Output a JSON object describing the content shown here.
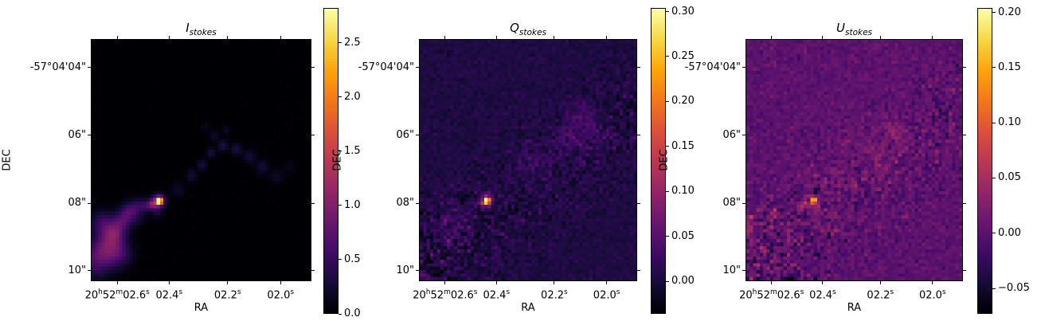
{
  "figure": {
    "background": "#ffffff",
    "description": "Three-panel Stokes I/Q/U intensity maps of a compact source with polarized outflow, inferno colormap, WCS RA/DEC axes"
  },
  "chart_data": {
    "type": "heatmap",
    "colormap": "inferno",
    "colormap_stops": [
      [
        0.0,
        "#000004"
      ],
      [
        0.1,
        "#160b39"
      ],
      [
        0.2,
        "#420a68"
      ],
      [
        0.3,
        "#6a176e"
      ],
      [
        0.4,
        "#932667"
      ],
      [
        0.5,
        "#bc3754"
      ],
      [
        0.6,
        "#dd513a"
      ],
      [
        0.7,
        "#f37819"
      ],
      [
        0.8,
        "#fca50a"
      ],
      [
        0.9,
        "#f6d746"
      ],
      [
        1.0,
        "#fcffa4"
      ]
    ],
    "shared_axes": {
      "xlabel": "RA",
      "ylabel": "DEC",
      "x_tick_labels": [
        "20h52m02.6s",
        "02.4s",
        "02.2s",
        "02.0s"
      ],
      "x_ticks": [
        {
          "frac": 0.12,
          "parts": [
            [
              "20",
              0
            ],
            [
              "h",
              1
            ],
            [
              "52",
              0
            ],
            [
              "m",
              1
            ],
            [
              "02.6",
              0
            ],
            [
              "s",
              1
            ]
          ]
        },
        {
          "frac": 0.355,
          "parts": [
            [
              "02.4",
              0
            ],
            [
              "s",
              1
            ]
          ]
        },
        {
          "frac": 0.62,
          "parts": [
            [
              "02.2",
              0
            ],
            [
              "s",
              1
            ]
          ]
        },
        {
          "frac": 0.86,
          "parts": [
            [
              "02.0",
              0
            ],
            [
              "s",
              1
            ]
          ]
        }
      ],
      "y_ticks": [
        {
          "frac": 0.118,
          "label": "-57°04'04\""
        },
        {
          "frac": 0.398,
          "label": "06\""
        },
        {
          "frac": 0.678,
          "label": "08\""
        },
        {
          "frac": 0.957,
          "label": "10\""
        }
      ]
    },
    "peak_source": {
      "ra_readoff": "≈20h52m02.43s",
      "dec_readoff": "≈-57°04'07.9\"",
      "note": "bright compact source present in all three panels at same sky position"
    },
    "panels": [
      {
        "title_main": "I",
        "title_sub": "stokes",
        "vmin": 0.0,
        "vmax": 2.82,
        "background_level": 0.0,
        "peak_value": 2.82,
        "colorbar_ticks": [
          {
            "label": "0.0",
            "value": 0.0
          },
          {
            "label": "0.5",
            "value": 0.5
          },
          {
            "label": "1.0",
            "value": 1.0
          },
          {
            "label": "1.5",
            "value": 1.5
          },
          {
            "label": "2.0",
            "value": 2.0
          },
          {
            "label": "2.5",
            "value": 2.5
          }
        ],
        "render": {
          "seed": 11,
          "noise": {
            "base": 0.004,
            "band": 0.006,
            "lower_left": 0.012
          },
          "features": [
            [
              0.31,
              0.67,
              2.9,
              0.009
            ],
            [
              0.31,
              0.67,
              1.0,
              0.02
            ],
            [
              0.282,
              0.682,
              0.85,
              0.016
            ],
            [
              0.252,
              0.69,
              0.45,
              0.018
            ],
            [
              0.3,
              0.72,
              0.25,
              0.015
            ],
            [
              0.105,
              0.8,
              0.75,
              0.035
            ],
            [
              0.07,
              0.86,
              0.65,
              0.045
            ],
            [
              0.145,
              0.745,
              0.55,
              0.03
            ],
            [
              0.045,
              0.76,
              0.45,
              0.035
            ],
            [
              0.175,
              0.705,
              0.4,
              0.025
            ],
            [
              0.02,
              0.92,
              0.55,
              0.05
            ],
            [
              0.215,
              0.685,
              0.3,
              0.02
            ],
            [
              0.13,
              0.89,
              0.45,
              0.04
            ],
            [
              0.205,
              0.73,
              0.25,
              0.03
            ],
            [
              0.395,
              0.625,
              0.2,
              0.02
            ],
            [
              0.455,
              0.565,
              0.28,
              0.017
            ],
            [
              0.505,
              0.52,
              0.33,
              0.015
            ],
            [
              0.545,
              0.47,
              0.33,
              0.014
            ],
            [
              0.6,
              0.44,
              0.38,
              0.015
            ],
            [
              0.66,
              0.455,
              0.33,
              0.017
            ],
            [
              0.72,
              0.487,
              0.3,
              0.019
            ],
            [
              0.78,
              0.53,
              0.26,
              0.021
            ],
            [
              0.845,
              0.57,
              0.2,
              0.02
            ],
            [
              0.56,
              0.4,
              0.22,
              0.014
            ],
            [
              0.52,
              0.36,
              0.15,
              0.014
            ],
            [
              0.615,
              0.375,
              0.17,
              0.013
            ],
            [
              0.905,
              0.53,
              0.13,
              0.018
            ]
          ]
        }
      },
      {
        "title_main": "Q",
        "title_sub": "stokes",
        "vmin": -0.036,
        "vmax": 0.304,
        "background_level": 0.004,
        "peak_value": 0.3,
        "colorbar_ticks": [
          {
            "label": "0.00",
            "value": 0.0
          },
          {
            "label": "0.05",
            "value": 0.05
          },
          {
            "label": "0.10",
            "value": 0.1
          },
          {
            "label": "0.15",
            "value": 0.15
          },
          {
            "label": "0.20",
            "value": 0.2
          },
          {
            "label": "0.25",
            "value": 0.25
          },
          {
            "label": "0.30",
            "value": 0.3
          }
        ],
        "render": {
          "seed": 23,
          "noise": {
            "base": 0.005,
            "band": 0.011,
            "lower_left": 0.013
          },
          "features": [
            [
              0.31,
              0.67,
              0.3,
              0.009
            ],
            [
              0.31,
              0.67,
              0.1,
              0.018
            ],
            [
              0.285,
              0.685,
              0.05,
              0.014
            ],
            [
              0.5,
              0.52,
              0.02,
              0.05
            ],
            [
              0.65,
              0.45,
              0.022,
              0.05
            ],
            [
              0.78,
              0.4,
              0.02,
              0.06
            ],
            [
              0.15,
              0.78,
              0.02,
              0.06
            ],
            [
              0.75,
              0.33,
              0.02,
              0.05
            ]
          ]
        }
      },
      {
        "title_main": "U",
        "title_sub": "stokes",
        "vmin": -0.073,
        "vmax": 0.204,
        "background_level": 0.0,
        "peak_value": 0.2,
        "colorbar_ticks": [
          {
            "label": "−0.05",
            "value": -0.05
          },
          {
            "label": "0.00",
            "value": 0.0
          },
          {
            "label": "0.05",
            "value": 0.05
          },
          {
            "label": "0.10",
            "value": 0.1
          },
          {
            "label": "0.15",
            "value": 0.15
          },
          {
            "label": "0.20",
            "value": 0.2
          }
        ],
        "render": {
          "seed": 37,
          "noise": {
            "base": 0.007,
            "band": 0.011,
            "lower_left": 0.011
          },
          "features": [
            [
              0.312,
              0.668,
              0.205,
              0.008
            ],
            [
              0.312,
              0.668,
              0.05,
              0.016
            ],
            [
              0.325,
              0.63,
              -0.1,
              0.009
            ],
            [
              0.272,
              0.678,
              0.055,
              0.011
            ],
            [
              0.247,
              0.69,
              0.03,
              0.012
            ],
            [
              0.52,
              0.54,
              -0.06,
              0.008
            ],
            [
              0.004,
              0.74,
              0.065,
              0.016
            ],
            [
              0.006,
              0.79,
              0.05,
              0.018
            ],
            [
              0.55,
              0.48,
              0.012,
              0.08
            ],
            [
              0.35,
              0.62,
              0.012,
              0.07
            ],
            [
              0.7,
              0.42,
              0.012,
              0.07
            ],
            [
              0.42,
              0.56,
              0.03,
              0.012
            ],
            [
              0.6,
              0.5,
              0.028,
              0.011
            ],
            [
              0.68,
              0.38,
              0.03,
              0.012
            ],
            [
              0.13,
              0.72,
              0.03,
              0.013
            ],
            [
              0.2,
              0.8,
              0.028,
              0.012
            ],
            [
              0.08,
              0.88,
              0.03,
              0.013
            ],
            [
              0.88,
              0.46,
              0.025,
              0.012
            ],
            [
              0.5,
              0.6,
              0.025,
              0.011
            ],
            [
              0.08,
              0.985,
              -0.05,
              0.012
            ],
            [
              0.2,
              0.985,
              -0.05,
              0.012
            ],
            [
              0.32,
              0.985,
              -0.05,
              0.012
            ]
          ]
        }
      }
    ]
  }
}
